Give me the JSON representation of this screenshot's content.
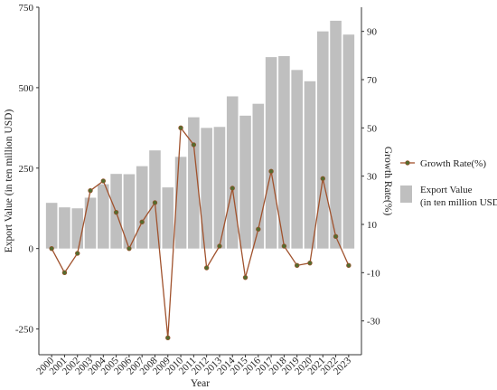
{
  "chart_data": {
    "type": "bar+line",
    "categories": [
      "2000",
      "2001",
      "2002",
      "2003",
      "2004",
      "2005",
      "2006",
      "2007",
      "2008",
      "2009",
      "2010",
      "2011",
      "2012",
      "2013",
      "2014",
      "2015",
      "2016",
      "2017",
      "2018",
      "2019",
      "2020",
      "2021",
      "2022",
      "2023"
    ],
    "series": [
      {
        "name": "Export Value (in ten million USD)",
        "type": "bar",
        "axis": "left",
        "color": "#bfbfbf",
        "values": [
          142,
          128,
          125,
          158,
          200,
          232,
          231,
          256,
          305,
          190,
          285,
          408,
          375,
          378,
          473,
          413,
          450,
          595,
          598,
          555,
          520,
          675,
          708,
          665
        ]
      },
      {
        "name": "Growth Rate(%)",
        "type": "line",
        "axis": "right",
        "color": "#a0522d",
        "marker_color": "#556b2f",
        "values": [
          0,
          -10,
          -2,
          24,
          28,
          15,
          0,
          11,
          19,
          -37,
          50,
          43,
          -8,
          1,
          25,
          -12,
          8,
          32,
          1,
          -7,
          -6,
          29,
          5,
          -7
        ]
      }
    ],
    "xlabel": "Year",
    "ylabel_left": "Export Value (in ten million USD)",
    "ylabel_right": "Growth Rate(%)",
    "ylim_left": [
      -330,
      750
    ],
    "yticks_left": [
      -250,
      0,
      250,
      500,
      750
    ],
    "ytick_labels_left": [
      "-250",
      "0",
      "250",
      "500",
      "750"
    ],
    "ylim_right": [
      -44,
      100
    ],
    "yticks_right": [
      -30,
      -10,
      10,
      30,
      50,
      70,
      90
    ],
    "ytick_labels_right": [
      "-30",
      "-10",
      "10",
      "30",
      "50",
      "70",
      "90"
    ],
    "legend_position": "right",
    "legend": [
      {
        "label": "Growth Rate(%)",
        "kind": "line"
      },
      {
        "label_lines": [
          "Export Value",
          "(in ten million USD)"
        ],
        "kind": "bar"
      }
    ],
    "grid": false
  }
}
